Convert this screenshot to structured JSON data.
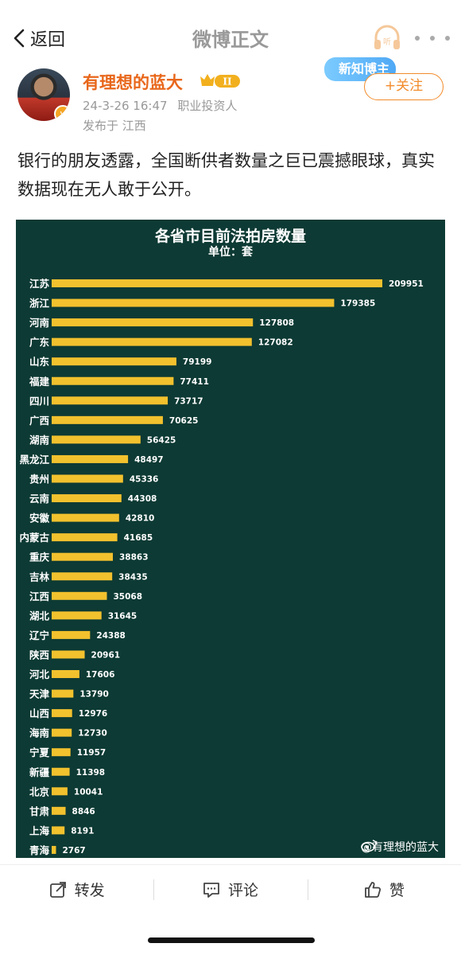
{
  "nav": {
    "back_label": "返回",
    "title": "微博正文"
  },
  "post": {
    "author": "有理想的蓝大",
    "vip_level": "II",
    "timestamp": "24-3-26 16:47",
    "occupation": "职业投资人",
    "location": "发布于 江西",
    "promo_label": "新知博主",
    "follow_label": "+关注",
    "text": "银行的朋友透露，全国断供者数量之巨已震撼眼球，真实数据现在无人敢于公开。"
  },
  "chart_data": {
    "type": "bar",
    "orientation": "horizontal",
    "title": "各省市目前法拍房数量",
    "subtitle": "单位：套",
    "bar_color": "#f2c12e",
    "background": "#0d3a34",
    "categories": [
      "江苏",
      "浙江",
      "河南",
      "广东",
      "山东",
      "福建",
      "四川",
      "广西",
      "湖南",
      "黑龙江",
      "贵州",
      "云南",
      "安徽",
      "内蒙古",
      "重庆",
      "吉林",
      "江西",
      "湖北",
      "辽宁",
      "陕西",
      "河北",
      "天津",
      "山西",
      "海南",
      "宁夏",
      "新疆",
      "北京",
      "甘肃",
      "上海",
      "青海"
    ],
    "values": [
      209951,
      179385,
      127808,
      127082,
      79199,
      77411,
      73717,
      70625,
      56425,
      48497,
      45336,
      44308,
      42810,
      41685,
      38863,
      38435,
      35068,
      31645,
      24388,
      20961,
      17606,
      13790,
      12976,
      12730,
      11957,
      11398,
      10041,
      8846,
      8191,
      2767
    ],
    "watermark": "@有理想的蓝大"
  },
  "actions": {
    "repost": "转发",
    "comment": "评论",
    "like": "赞"
  }
}
